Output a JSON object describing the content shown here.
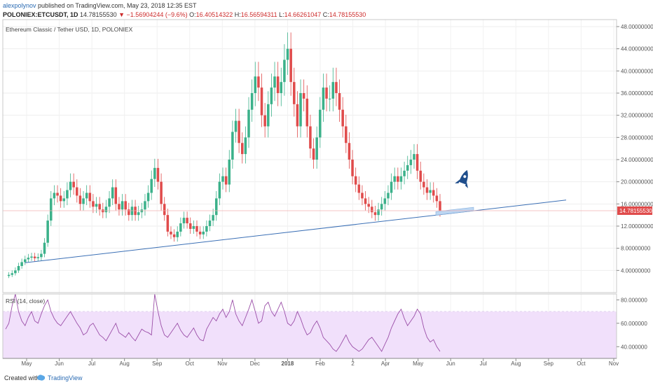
{
  "header": {
    "author": "alexpolynov",
    "published": "published on TradingView.com, May 23, 2018 12:35 EST",
    "symbol": "POLONIEX:ETCUSDT, 1D",
    "last": "14.78155530",
    "change": "−1.56904244 (−9.6%)",
    "o_label": "O:",
    "o_value": "16.40514322",
    "h_label": "H:",
    "h_value": "16.56594311",
    "l_label": "L:",
    "l_value": "14.66261047",
    "c_label": "C:",
    "c_value": "14.78155530"
  },
  "chart_data": [
    {
      "type": "candlestick",
      "title": "Ethereum Classic / Tether USD, 1D, POLONIEX",
      "ylim": [
        0,
        48
      ],
      "y_ticks": [
        "48.00000000",
        "44.00000000",
        "40.00000000",
        "36.00000000",
        "32.00000000",
        "28.00000000",
        "24.00000000",
        "20.00000000",
        "16.00000000",
        "12.00000000",
        "8.00000000",
        "4.00000000"
      ],
      "y_tick_values": [
        48,
        44,
        40,
        36,
        32,
        28,
        24,
        20,
        16,
        12,
        8,
        4
      ],
      "x_ticks": [
        "May",
        "Jun",
        "Jul",
        "Aug",
        "Sep",
        "Oct",
        "Nov",
        "Dec",
        "2018",
        "Feb",
        "2",
        "Apr",
        "May",
        "Jun",
        "Jul",
        "Aug",
        "Sep",
        "Oct",
        "Nov"
      ],
      "last_price_label": "14.78155530",
      "last_price": 14.78,
      "price_path": [
        3,
        3.2,
        3.5,
        4,
        4.8,
        5.5,
        6,
        6.3,
        6.5,
        6.2,
        6.4,
        7,
        9,
        13,
        17,
        18,
        17.5,
        16.5,
        17,
        18.5,
        20,
        19,
        17.5,
        16,
        17,
        18,
        16.5,
        15.5,
        16,
        15,
        14.5,
        15.5,
        17,
        19,
        16,
        15,
        16.5,
        15,
        14,
        15.5,
        14,
        14.5,
        15,
        16.5,
        18,
        20.5,
        22.5,
        20,
        16,
        14,
        11,
        10.5,
        10,
        11,
        12.5,
        13.5,
        12.5,
        11.5,
        12,
        11,
        10.5,
        11,
        12,
        13,
        14,
        17,
        20,
        21,
        19.5,
        24,
        29,
        31,
        27,
        25,
        28,
        33,
        36,
        39,
        37,
        32,
        30,
        34,
        37,
        39,
        36,
        38,
        42,
        44,
        38,
        34,
        30,
        36,
        35,
        30,
        26,
        24,
        28,
        33,
        37,
        35,
        35,
        38,
        36,
        33,
        30,
        27,
        24,
        21,
        19.5,
        18,
        17,
        16,
        15.5,
        14.5,
        14,
        15,
        16,
        17,
        18,
        20,
        21,
        20,
        21,
        22,
        23,
        24,
        25,
        22,
        20,
        19,
        18,
        18.5,
        17.5,
        16.5,
        14.8
      ],
      "trendline": [
        [
          5.4,
          "Apr"
        ],
        [
          16.7,
          "Sep"
        ]
      ],
      "annotation": "rocket-icon",
      "colors": {
        "up": "#3bb18a",
        "down": "#e04b4b",
        "trendline": "#3a6fb5",
        "last_price": "#e04b4b"
      }
    },
    {
      "type": "line",
      "title": "RSI (14, close)",
      "ylim": [
        30,
        85
      ],
      "y_ticks": [
        "80.000000",
        "60.000000",
        "40.000000"
      ],
      "y_tick_values": [
        80,
        60,
        40
      ],
      "band": [
        30,
        70
      ],
      "values": [
        55,
        60,
        75,
        85,
        70,
        62,
        58,
        65,
        70,
        62,
        60,
        68,
        75,
        80,
        70,
        64,
        60,
        58,
        62,
        66,
        70,
        65,
        60,
        56,
        50,
        52,
        58,
        60,
        55,
        50,
        48,
        45,
        50,
        55,
        60,
        52,
        50,
        48,
        52,
        48,
        45,
        50,
        55,
        53,
        52,
        50,
        85,
        70,
        58,
        50,
        48,
        52,
        56,
        60,
        54,
        50,
        48,
        52,
        56,
        50,
        46,
        45,
        55,
        60,
        65,
        62,
        68,
        72,
        65,
        70,
        80,
        68,
        62,
        58,
        65,
        72,
        80,
        70,
        60,
        62,
        75,
        78,
        70,
        66,
        72,
        78,
        70,
        60,
        58,
        62,
        70,
        64,
        56,
        50,
        52,
        58,
        62,
        56,
        48,
        45,
        42,
        38,
        36,
        40,
        45,
        50,
        44,
        40,
        38,
        36,
        38,
        42,
        46,
        48,
        44,
        40,
        36,
        42,
        48,
        56,
        62,
        68,
        72,
        64,
        58,
        62,
        66,
        72,
        68,
        56,
        48,
        44,
        46,
        40,
        36
      ]
    }
  ],
  "footer": {
    "created_with": "Created with",
    "brand": "TradingView"
  }
}
